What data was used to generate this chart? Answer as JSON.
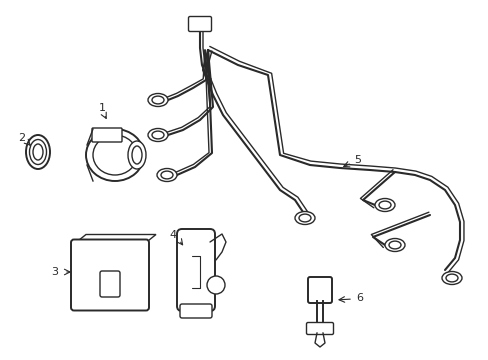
{
  "background_color": "#ffffff",
  "line_color": "#2a2a2a",
  "line_width": 1.4,
  "figsize": [
    4.89,
    3.6
  ],
  "dpi": 100,
  "xlim": [
    0,
    489
  ],
  "ylim": [
    0,
    360
  ]
}
